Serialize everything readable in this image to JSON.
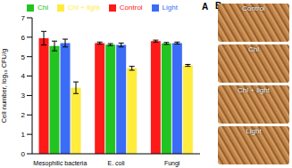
{
  "chart_data": {
    "type": "bar",
    "panel_label": "A",
    "y_label": "Cell number, log₁₀ CFU/g",
    "categories": [
      "Mesophilic bacteria",
      "E. coli",
      "Fungi"
    ],
    "series": [
      {
        "name": "Control",
        "color": "#ff1a1a",
        "values": [
          5.95,
          5.7,
          5.8
        ],
        "errors": [
          0.35,
          0.05,
          0.05
        ]
      },
      {
        "name": "Chl",
        "color": "#22c422",
        "values": [
          5.55,
          5.62,
          5.68
        ],
        "errors": [
          0.25,
          0.05,
          0.05
        ]
      },
      {
        "name": "Light",
        "color": "#3b6cf6",
        "values": [
          5.7,
          5.6,
          5.7
        ],
        "errors": [
          0.2,
          0.1,
          0.05
        ]
      },
      {
        "name": "Chl + light",
        "color": "#ffec3d",
        "values": [
          3.4,
          4.4,
          4.55
        ],
        "errors": [
          0.3,
          0.1,
          0.05
        ]
      }
    ],
    "ylim": [
      0,
      7
    ],
    "yticks": [
      0,
      1,
      2,
      3,
      4,
      5,
      6,
      7
    ],
    "legend": "top"
  },
  "panel_b": {
    "label": "B",
    "images": [
      "Control",
      "Chl",
      "Chl + light",
      "Light"
    ]
  }
}
